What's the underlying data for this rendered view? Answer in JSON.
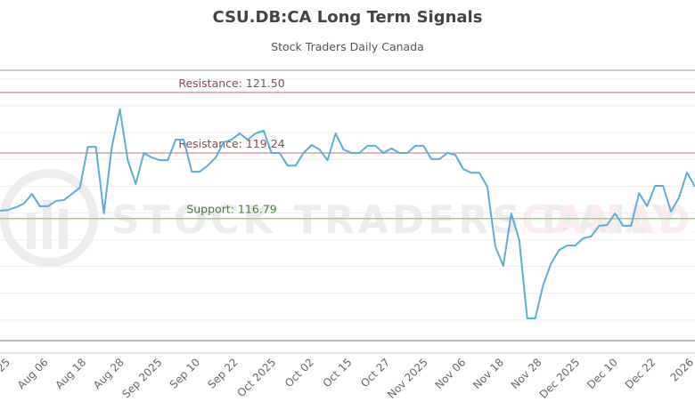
{
  "chart_data": {
    "type": "line",
    "title": "CSU.DB:CA Long Term Signals",
    "subtitle": "Stock Traders Daily Canada",
    "watermark": {
      "text_left": "STOCK TRADERS DAILY",
      "text_right": "CANADA"
    },
    "ylim": [
      112.23,
      122.33
    ],
    "grid": true,
    "grid_values": [
      113,
      114,
      115,
      116,
      117,
      118,
      119,
      120,
      121,
      122
    ],
    "x_tick_labels": [
      "25",
      "Aug 06",
      "Aug 18",
      "Aug 28",
      "Sep 2025",
      "Sep 10",
      "Sep 22",
      "Oct 2025",
      "Oct 02",
      "Oct 15",
      "Oct 27",
      "Nov 2025",
      "Nov 06",
      "Nov 18",
      "Nov 28",
      "Dec 2025",
      "Dec 10",
      "Dec 22",
      "2026"
    ],
    "levels": [
      {
        "label": "Resistance: 121.50",
        "value": 121.5,
        "color": "#e39a9f",
        "kind": "resistance"
      },
      {
        "label": "Resistance: 119.24",
        "value": 119.24,
        "color": "#e39a9f",
        "kind": "resistance"
      },
      {
        "label": "Support: 116.79",
        "value": 116.79,
        "color": "#9fd08a",
        "kind": "support"
      }
    ],
    "line_color": "#5aaedc",
    "values": [
      117.08,
      117.11,
      117.21,
      117.35,
      117.71,
      117.25,
      117.25,
      117.45,
      117.48,
      117.71,
      117.94,
      119.47,
      119.47,
      116.98,
      119.47,
      120.87,
      118.97,
      118.08,
      119.24,
      119.07,
      118.97,
      118.97,
      119.74,
      119.74,
      118.54,
      118.54,
      118.77,
      119.07,
      119.64,
      119.74,
      119.97,
      119.74,
      119.97,
      120.07,
      119.24,
      119.24,
      118.77,
      118.77,
      119.24,
      119.54,
      119.37,
      118.97,
      119.97,
      119.37,
      119.24,
      119.24,
      119.51,
      119.51,
      119.24,
      119.41,
      119.24,
      119.24,
      119.51,
      119.51,
      119.01,
      119.01,
      119.24,
      119.17,
      118.64,
      118.5,
      118.5,
      117.98,
      115.75,
      115.02,
      116.98,
      115.98,
      113.06,
      113.06,
      114.32,
      115.12,
      115.62,
      115.78,
      115.78,
      116.05,
      116.12,
      116.52,
      116.55,
      116.98,
      116.52,
      116.52,
      117.74,
      117.25,
      118.01,
      118.01,
      117.05,
      117.58,
      118.51,
      117.98
    ]
  }
}
